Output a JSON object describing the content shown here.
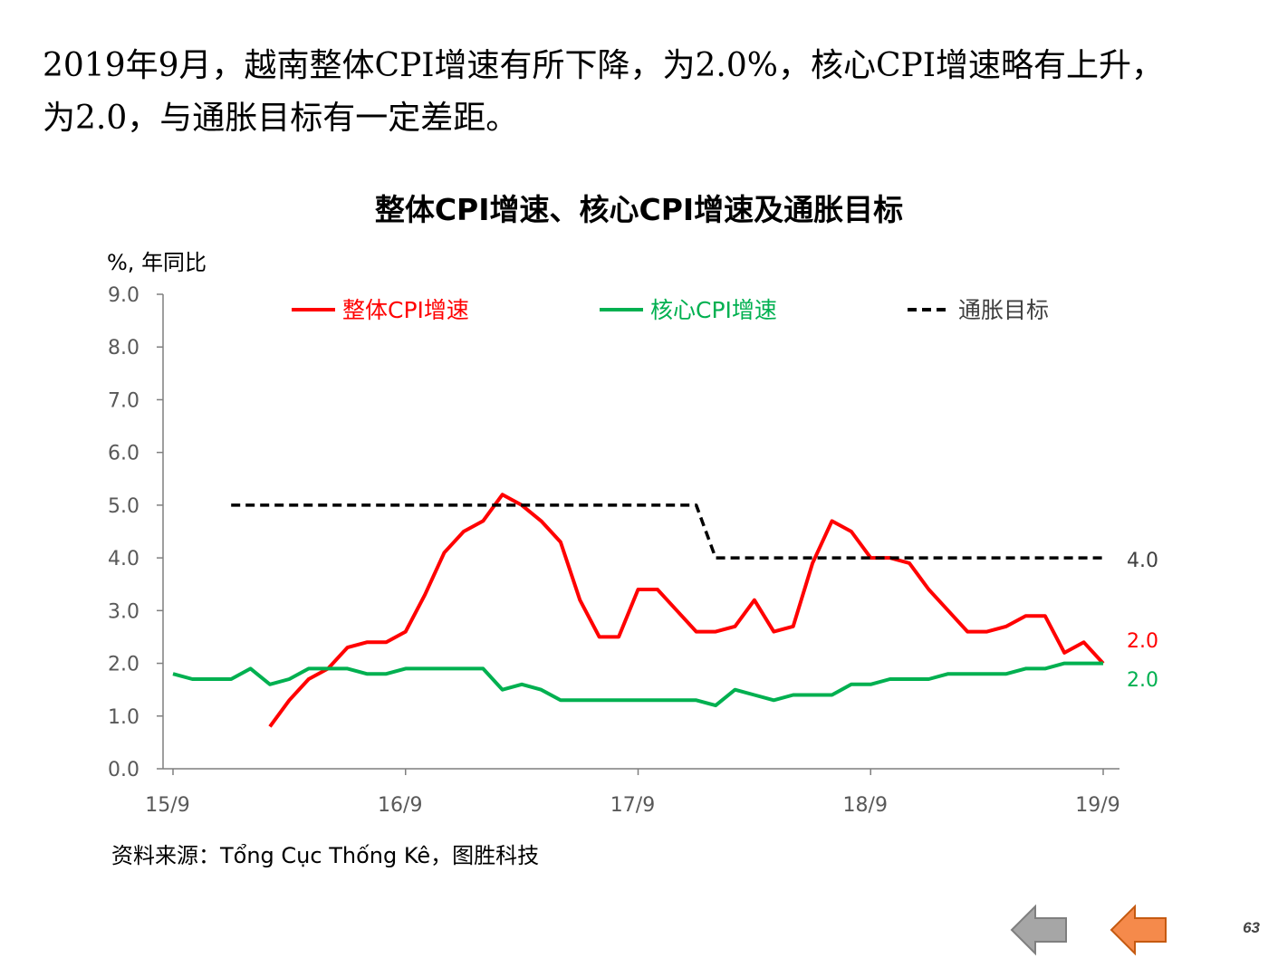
{
  "headline": {
    "line1": "2019年9月，越南整体CPI增速有所下降，为2.0%，核心CPI增速略有上升，",
    "line2": "为2.0，与通胀目标有一定差距。"
  },
  "source": "资料来源：Tổng Cục Thống Kê，图胜科技",
  "page_number": "63",
  "nav": {
    "prev_icon": "left-arrow-icon-gray",
    "next_icon": "left-arrow-icon-orange"
  },
  "colors": {
    "headline_red": "#ff0000",
    "core_green": "#00b050",
    "target_black": "#000000",
    "prev_button": "#a6a6a6",
    "next_button": "#f58a4b"
  },
  "chart_data": {
    "type": "line",
    "title": "整体CPI增速、核心CPI增速及通胀目标",
    "ylabel": "%, 年同比",
    "ylim": [
      0,
      9
    ],
    "yticks": [
      "0.0",
      "1.0",
      "2.0",
      "3.0",
      "4.0",
      "5.0",
      "6.0",
      "7.0",
      "8.0",
      "9.0"
    ],
    "x": [
      "2015-09",
      "2015-10",
      "2015-11",
      "2015-12",
      "2016-01",
      "2016-02",
      "2016-03",
      "2016-04",
      "2016-05",
      "2016-06",
      "2016-07",
      "2016-08",
      "2016-09",
      "2016-10",
      "2016-11",
      "2016-12",
      "2017-01",
      "2017-02",
      "2017-03",
      "2017-04",
      "2017-05",
      "2017-06",
      "2017-07",
      "2017-08",
      "2017-09",
      "2017-10",
      "2017-11",
      "2017-12",
      "2018-01",
      "2018-02",
      "2018-03",
      "2018-04",
      "2018-05",
      "2018-06",
      "2018-07",
      "2018-08",
      "2018-09",
      "2018-10",
      "2018-11",
      "2018-12",
      "2019-01",
      "2019-02",
      "2019-03",
      "2019-04",
      "2019-05",
      "2019-06",
      "2019-07",
      "2019-08",
      "2019-09"
    ],
    "xtick_labels": [
      {
        "x": "2015-09",
        "label": "15/9"
      },
      {
        "x": "2016-09",
        "label": "16/9"
      },
      {
        "x": "2017-09",
        "label": "17/9"
      },
      {
        "x": "2018-09",
        "label": "18/9"
      },
      {
        "x": "2019-09",
        "label": "19/9"
      }
    ],
    "legend_position": "top",
    "grid": false,
    "series": [
      {
        "name": "整体CPI增速",
        "color": "#ff0000",
        "style": "solid",
        "end_label": "2.0",
        "values": [
          null,
          null,
          null,
          null,
          null,
          0.8,
          1.3,
          1.7,
          1.9,
          2.3,
          2.4,
          2.4,
          2.6,
          3.3,
          4.1,
          4.5,
          4.7,
          5.2,
          5.0,
          4.7,
          4.3,
          3.2,
          2.5,
          2.5,
          3.4,
          3.4,
          3.0,
          2.6,
          2.6,
          2.7,
          3.2,
          2.6,
          2.7,
          3.9,
          4.7,
          4.5,
          4.0,
          4.0,
          3.9,
          3.4,
          3.0,
          2.6,
          2.6,
          2.7,
          2.9,
          2.9,
          2.2,
          2.4,
          2.0
        ]
      },
      {
        "name": "核心CPI增速",
        "color": "#00b050",
        "style": "solid",
        "end_label": "2.0",
        "values": [
          1.8,
          1.7,
          1.7,
          1.7,
          1.9,
          1.6,
          1.7,
          1.9,
          1.9,
          1.9,
          1.8,
          1.8,
          1.9,
          1.9,
          1.9,
          1.9,
          1.9,
          1.5,
          1.6,
          1.5,
          1.3,
          1.3,
          1.3,
          1.3,
          1.3,
          1.3,
          1.3,
          1.3,
          1.2,
          1.5,
          1.4,
          1.3,
          1.4,
          1.4,
          1.4,
          1.6,
          1.6,
          1.7,
          1.7,
          1.7,
          1.8,
          1.8,
          1.8,
          1.8,
          1.9,
          1.9,
          2.0,
          2.0,
          2.0
        ]
      },
      {
        "name": "通胀目标",
        "color": "#000000",
        "style": "dashed",
        "end_label": "4.0",
        "values": [
          null,
          null,
          null,
          5.0,
          5.0,
          5.0,
          5.0,
          5.0,
          5.0,
          5.0,
          5.0,
          5.0,
          5.0,
          5.0,
          5.0,
          5.0,
          5.0,
          5.0,
          5.0,
          5.0,
          5.0,
          5.0,
          5.0,
          5.0,
          5.0,
          5.0,
          5.0,
          5.0,
          4.0,
          4.0,
          4.0,
          4.0,
          4.0,
          4.0,
          4.0,
          4.0,
          4.0,
          4.0,
          4.0,
          4.0,
          4.0,
          4.0,
          4.0,
          4.0,
          4.0,
          4.0,
          4.0,
          4.0,
          4.0
        ]
      }
    ]
  }
}
